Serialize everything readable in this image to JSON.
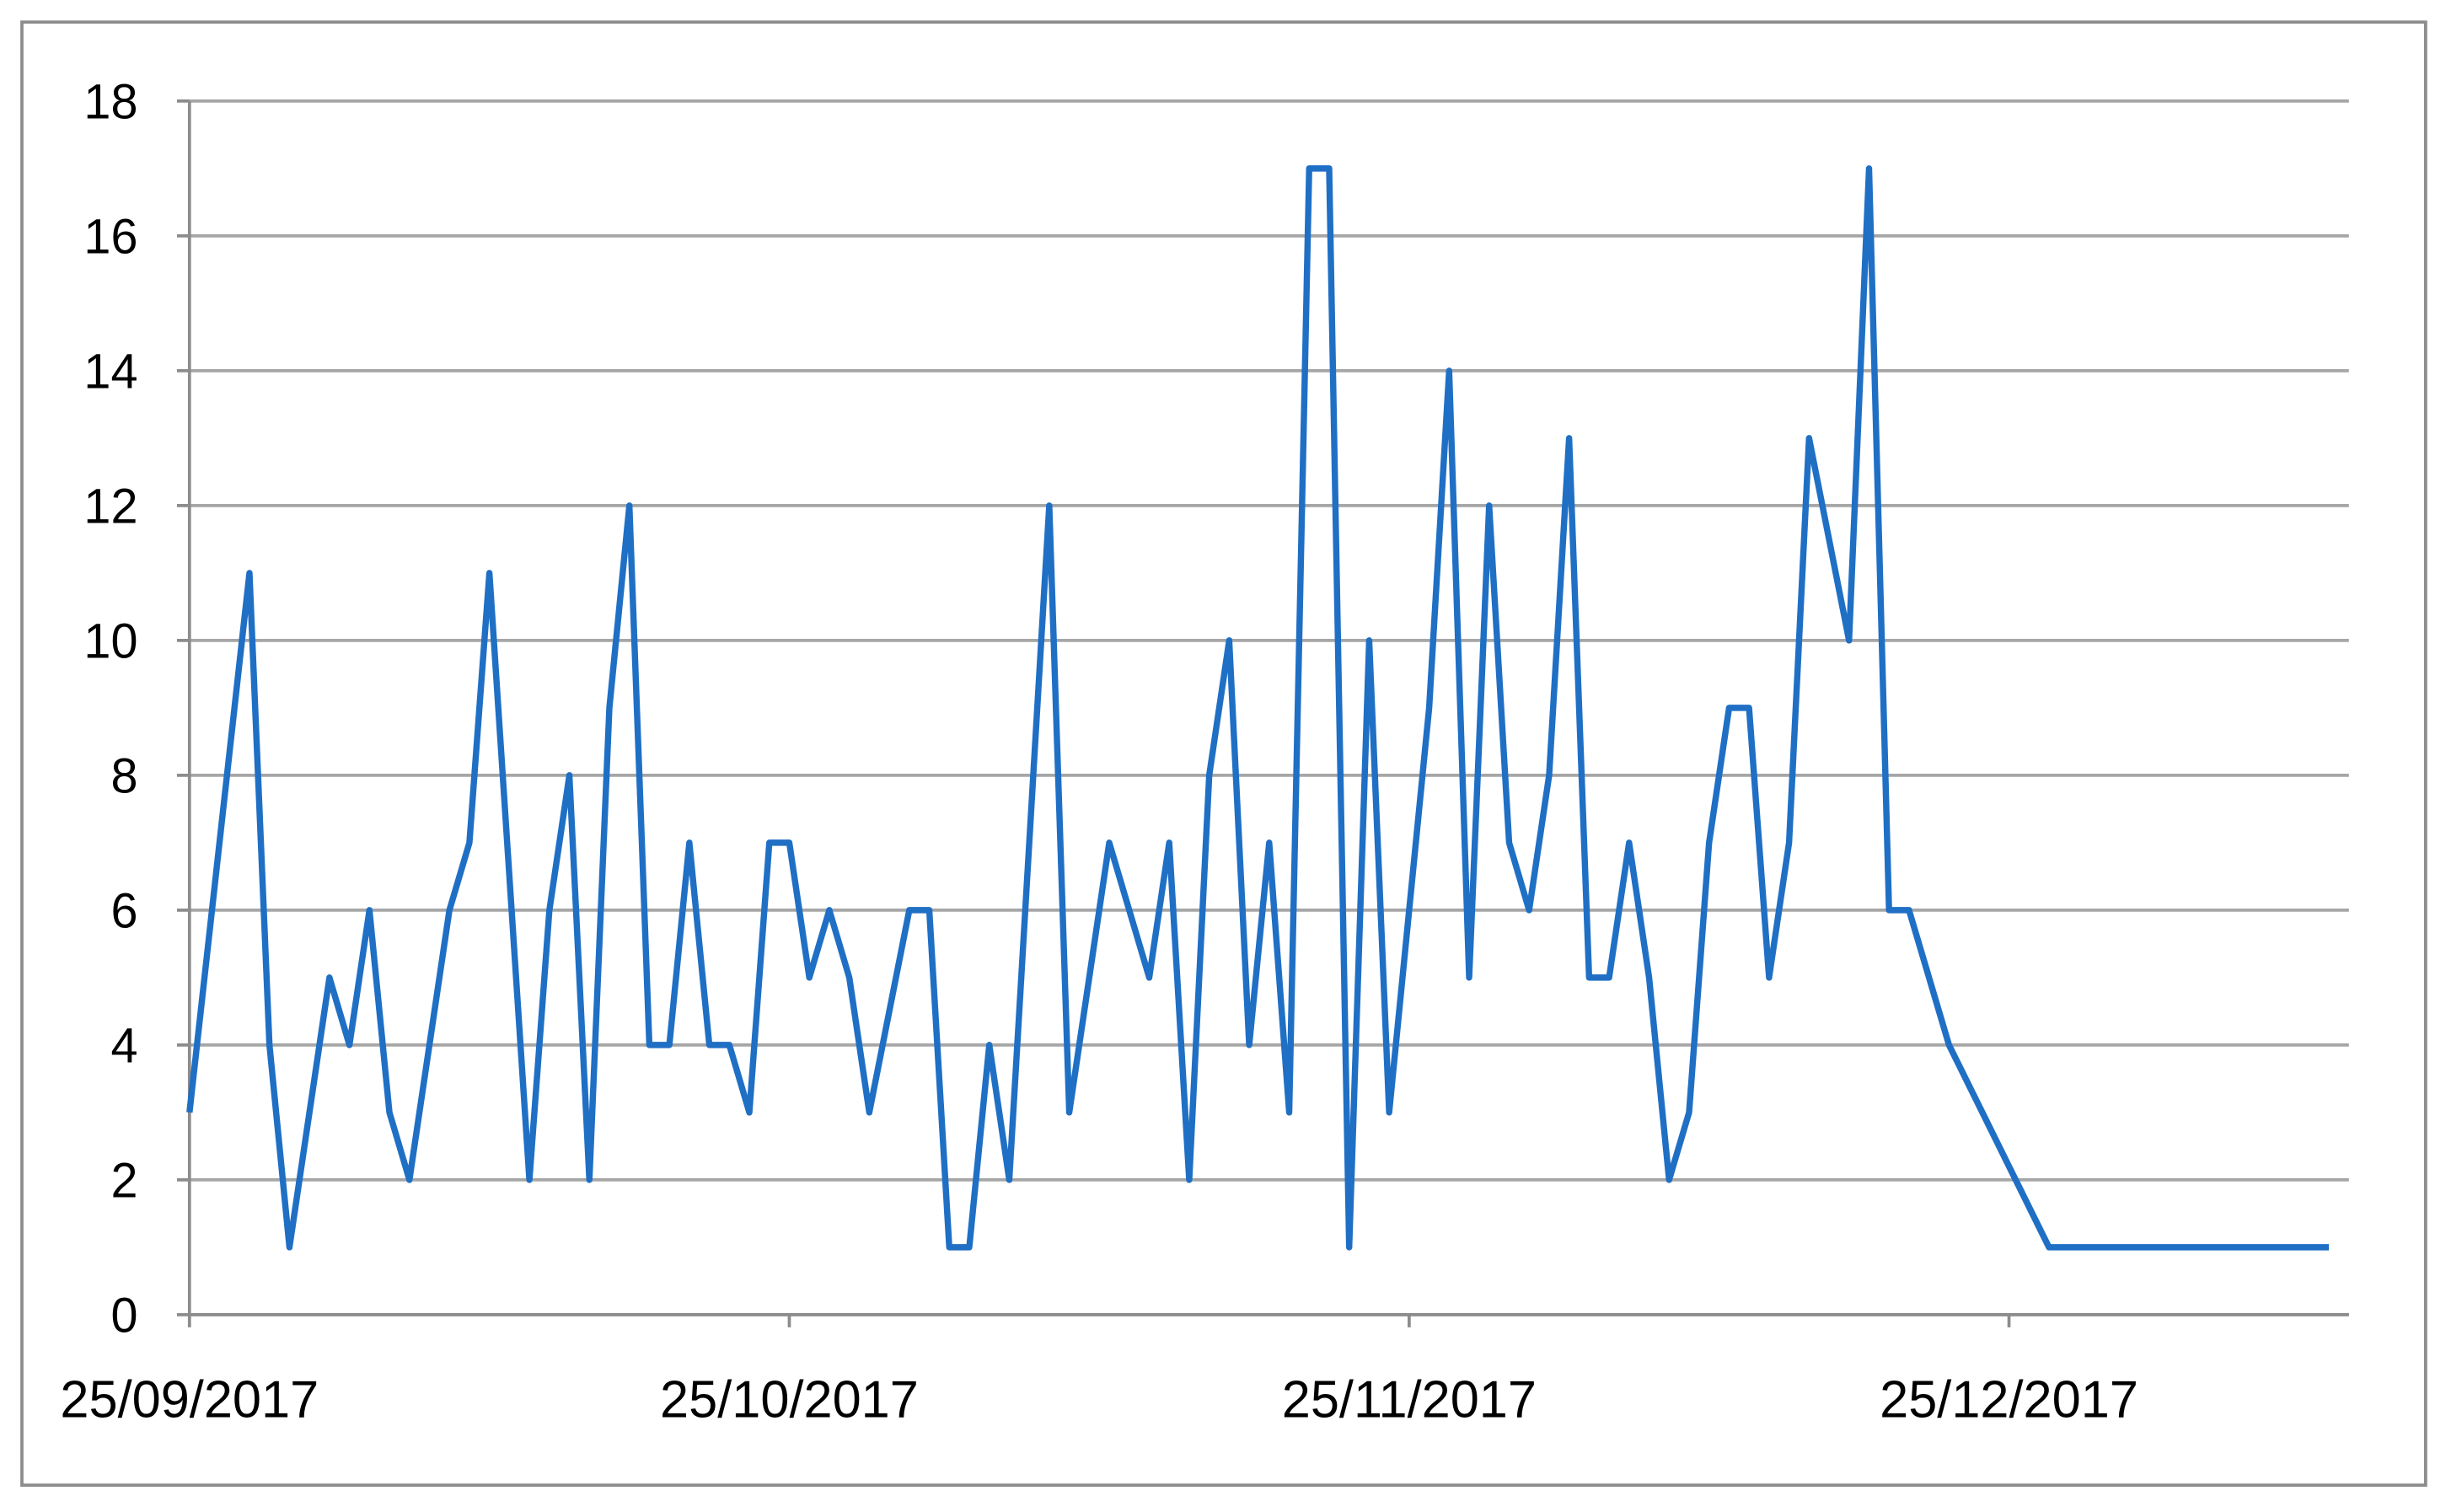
{
  "chart_data": {
    "type": "line",
    "x": [
      "25/09/2017",
      "28/09/2017",
      "29/09/2017",
      "30/09/2017",
      "01/10/2017",
      "02/10/2017",
      "03/10/2017",
      "04/10/2017",
      "05/10/2017",
      "06/10/2017",
      "08/10/2017",
      "09/10/2017",
      "10/10/2017",
      "12/10/2017",
      "13/10/2017",
      "14/10/2017",
      "15/10/2017",
      "16/10/2017",
      "17/10/2017",
      "18/10/2017",
      "19/10/2017",
      "20/10/2017",
      "21/10/2017",
      "22/10/2017",
      "23/10/2017",
      "24/10/2017",
      "25/10/2017",
      "26/10/2017",
      "27/10/2017",
      "28/10/2017",
      "29/10/2017",
      "31/10/2017",
      "01/11/2017",
      "02/11/2017",
      "03/11/2017",
      "04/11/2017",
      "05/11/2017",
      "07/11/2017",
      "08/11/2017",
      "10/11/2017",
      "12/11/2017",
      "13/11/2017",
      "14/11/2017",
      "15/11/2017",
      "16/11/2017",
      "17/11/2017",
      "18/11/2017",
      "19/11/2017",
      "20/11/2017",
      "21/11/2017",
      "22/11/2017",
      "23/11/2017",
      "24/11/2017",
      "25/11/2017",
      "26/11/2017",
      "27/11/2017",
      "28/11/2017",
      "29/11/2017",
      "30/11/2017",
      "01/12/2017",
      "02/12/2017",
      "03/12/2017",
      "04/12/2017",
      "05/12/2017",
      "06/12/2017",
      "07/12/2017",
      "08/12/2017",
      "09/12/2017",
      "10/12/2017",
      "11/12/2017",
      "12/12/2017",
      "13/12/2017",
      "14/12/2017",
      "15/12/2017",
      "17/12/2017",
      "18/12/2017",
      "19/12/2017",
      "20/12/2017",
      "22/12/2017",
      "27/12/2017",
      "10/01/2018"
    ],
    "series": [
      {
        "color": "#1f6fc5",
        "values": [
          3,
          11,
          4,
          1,
          3,
          5,
          4,
          6,
          3,
          2,
          6,
          7,
          11,
          2,
          6,
          8,
          2,
          9,
          12,
          4,
          4,
          7,
          4,
          4,
          3,
          7,
          7,
          5,
          6,
          5,
          3,
          6,
          6,
          1,
          1,
          4,
          2,
          12,
          3,
          7,
          5,
          7,
          2,
          8,
          10,
          4,
          7,
          3,
          17,
          17,
          1,
          10,
          3,
          6,
          9,
          14,
          5,
          12,
          7,
          6,
          8,
          13,
          5,
          5,
          7,
          5,
          2,
          3,
          7,
          9,
          9,
          5,
          7,
          13,
          10,
          17,
          6,
          6,
          4,
          1,
          1
        ]
      }
    ],
    "xlim": [
      "25/09/2017",
      "11/01/2018"
    ],
    "xticks": [
      "25/09/2017",
      "25/10/2017",
      "25/11/2017",
      "25/12/2017"
    ],
    "ylim": [
      0,
      18
    ],
    "yticks": [
      0,
      2,
      4,
      6,
      8,
      10,
      12,
      14,
      16,
      18
    ],
    "grid": true
  }
}
